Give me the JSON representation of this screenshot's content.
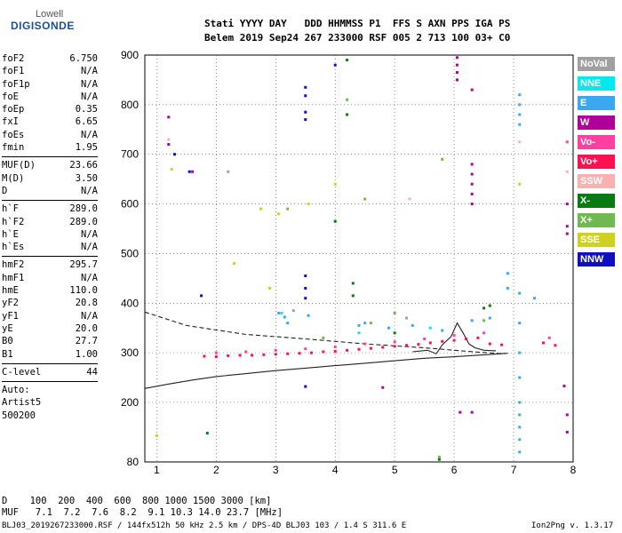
{
  "logo": {
    "line1": "Lowell",
    "line2": "DIGISONDE"
  },
  "header": {
    "line1": "Stati YYYY DAY   DDD HHMMSS P1  FFS S AXN PPS IGA PS",
    "line2": "Belem 2019 Sep24 267 233000 RSF 005 2 713 100 03+ C0"
  },
  "params": {
    "group1": [
      {
        "name": "foF2",
        "value": "6.750"
      },
      {
        "name": "foF1",
        "value": "N/A"
      },
      {
        "name": "foF1p",
        "value": "N/A"
      },
      {
        "name": "foE",
        "value": "N/A"
      },
      {
        "name": "foEp",
        "value": "0.35"
      },
      {
        "name": "fxI",
        "value": "6.65"
      },
      {
        "name": "foEs",
        "value": "N/A"
      },
      {
        "name": "fmin",
        "value": "1.95"
      }
    ],
    "group2": [
      {
        "name": "MUF(D)",
        "value": "23.66"
      },
      {
        "name": "M(D)",
        "value": "3.50"
      },
      {
        "name": "D",
        "value": "N/A"
      }
    ],
    "group3": [
      {
        "name": "h`F",
        "value": "289.0"
      },
      {
        "name": "h`F2",
        "value": "289.0"
      },
      {
        "name": "h`E",
        "value": "N/A"
      },
      {
        "name": "h`Es",
        "value": "N/A"
      }
    ],
    "group4": [
      {
        "name": "hmF2",
        "value": "295.7"
      },
      {
        "name": "hmF1",
        "value": "N/A"
      },
      {
        "name": "hmE",
        "value": "110.0"
      },
      {
        "name": "yF2",
        "value": "20.8"
      },
      {
        "name": "yF1",
        "value": "N/A"
      },
      {
        "name": "yE",
        "value": "20.0"
      },
      {
        "name": "B0",
        "value": "27.7"
      },
      {
        "name": "B1",
        "value": "1.00"
      }
    ],
    "group5": [
      {
        "name": "C-level",
        "value": "44"
      }
    ],
    "auto": [
      "Auto:",
      "Artist5",
      "500200"
    ]
  },
  "legend": [
    {
      "label": "NoVal",
      "color": "#a0a0a0"
    },
    {
      "label": "NNE",
      "color": "#00e8f0"
    },
    {
      "label": "E",
      "color": "#3aa8f0"
    },
    {
      "label": "W",
      "color": "#b0009a"
    },
    {
      "label": "Vo-",
      "color": "#ff40a0"
    },
    {
      "label": "Vo+",
      "color": "#ff1050"
    },
    {
      "label": "SSW",
      "color": "#f8b0b0"
    },
    {
      "label": "X-",
      "color": "#0a7a10"
    },
    {
      "label": "X+",
      "color": "#70b850"
    },
    {
      "label": "SSE",
      "color": "#d0d020"
    },
    {
      "label": "NNW",
      "color": "#1010c0"
    }
  ],
  "bottom": {
    "dline": "D    100  200  400  600  800 1000 1500 3000 [km]",
    "mufline": "MUF   7.1  7.2  7.6  8.2  9.1 10.3 14.0 23.7 [MHz]",
    "fileinfo": "BLJ03_2019267233000.RSF / 144fx512h 50 kHz 2.5 km / DPS-4D BLJ03 103 / 1.4 S 311.6 E",
    "version": "Ion2Png v. 1.3.17"
  },
  "chart_data": {
    "type": "scatter",
    "title": "",
    "xlabel": "",
    "ylabel": "",
    "xlim": [
      0.8,
      8.0
    ],
    "ylim": [
      80,
      900
    ],
    "xticks": [
      1,
      2,
      3,
      4,
      5,
      6,
      7,
      8
    ],
    "yticks": [
      80,
      200,
      300,
      400,
      500,
      600,
      700,
      800,
      900
    ],
    "grid": "dotted",
    "series": [
      {
        "name": "E",
        "color": "#3aa8f0",
        "points": [
          [
            3.05,
            380
          ],
          [
            3.15,
            372
          ],
          [
            3.2,
            360
          ],
          [
            3.55,
            375
          ],
          [
            4.4,
            355
          ],
          [
            4.5,
            360
          ],
          [
            4.9,
            350
          ],
          [
            5.3,
            355
          ],
          [
            5.8,
            345
          ],
          [
            6.3,
            365
          ],
          [
            6.6,
            370
          ],
          [
            7.1,
            820
          ],
          [
            7.1,
            800
          ],
          [
            7.1,
            780
          ],
          [
            7.1,
            760
          ],
          [
            7.1,
            420
          ],
          [
            7.1,
            360
          ],
          [
            7.1,
            300
          ],
          [
            7.1,
            250
          ],
          [
            7.1,
            200
          ],
          [
            7.1,
            175
          ],
          [
            7.1,
            150
          ],
          [
            7.1,
            125
          ],
          [
            7.1,
            100
          ],
          [
            6.9,
            430
          ],
          [
            6.9,
            460
          ],
          [
            7.35,
            410
          ]
        ]
      },
      {
        "name": "Vo+",
        "color": "#ff1050",
        "points": [
          [
            1.8,
            293
          ],
          [
            2.0,
            292
          ],
          [
            2.2,
            294
          ],
          [
            2.4,
            295
          ],
          [
            2.6,
            295
          ],
          [
            2.8,
            296
          ],
          [
            3.0,
            297
          ],
          [
            3.2,
            298
          ],
          [
            3.4,
            299
          ],
          [
            3.6,
            300
          ],
          [
            3.8,
            302
          ],
          [
            4.0,
            303
          ],
          [
            4.2,
            305
          ],
          [
            4.4,
            307
          ],
          [
            4.6,
            309
          ],
          [
            4.8,
            311
          ],
          [
            5.0,
            313
          ],
          [
            5.2,
            315
          ],
          [
            5.4,
            317
          ],
          [
            5.6,
            320
          ],
          [
            5.8,
            323
          ],
          [
            6.0,
            325
          ],
          [
            6.2,
            328
          ],
          [
            6.4,
            330
          ],
          [
            6.6,
            318
          ],
          [
            6.8,
            316
          ],
          [
            7.5,
            320
          ],
          [
            7.7,
            315
          ]
        ]
      },
      {
        "name": "Vo-",
        "color": "#ff40a0",
        "points": [
          [
            2.0,
            300
          ],
          [
            2.5,
            302
          ],
          [
            3.0,
            305
          ],
          [
            3.5,
            308
          ],
          [
            4.0,
            312
          ],
          [
            4.5,
            318
          ],
          [
            5.0,
            322
          ],
          [
            5.5,
            328
          ],
          [
            6.0,
            335
          ],
          [
            6.5,
            340
          ],
          [
            7.6,
            330
          ],
          [
            7.9,
            725
          ]
        ]
      },
      {
        "name": "W",
        "color": "#b0009a",
        "points": [
          [
            6.05,
            895
          ],
          [
            6.05,
            880
          ],
          [
            6.05,
            865
          ],
          [
            6.05,
            850
          ],
          [
            6.3,
            680
          ],
          [
            6.3,
            660
          ],
          [
            6.3,
            640
          ],
          [
            6.3,
            620
          ],
          [
            6.3,
            600
          ],
          [
            1.2,
            775
          ],
          [
            1.2,
            720
          ],
          [
            1.6,
            665
          ],
          [
            7.9,
            555
          ],
          [
            7.9,
            540
          ],
          [
            7.9,
            600
          ],
          [
            7.9,
            175
          ],
          [
            7.9,
            140
          ],
          [
            6.3,
            830
          ],
          [
            6.3,
            180
          ],
          [
            6.1,
            180
          ],
          [
            4.8,
            230
          ],
          [
            7.85,
            233
          ]
        ]
      },
      {
        "name": "NNW",
        "color": "#1010c0",
        "points": [
          [
            3.5,
            835
          ],
          [
            3.5,
            818
          ],
          [
            3.5,
            785
          ],
          [
            3.5,
            770
          ],
          [
            3.5,
            455
          ],
          [
            3.5,
            430
          ],
          [
            3.5,
            410
          ],
          [
            3.5,
            232
          ],
          [
            4.0,
            880
          ],
          [
            1.3,
            700
          ],
          [
            1.55,
            665
          ],
          [
            1.75,
            415
          ]
        ]
      },
      {
        "name": "X-",
        "color": "#0a7a10",
        "points": [
          [
            4.2,
            890
          ],
          [
            4.2,
            780
          ],
          [
            4.0,
            565
          ],
          [
            4.3,
            440
          ],
          [
            4.3,
            415
          ],
          [
            5.0,
            340
          ],
          [
            6.5,
            390
          ],
          [
            6.6,
            395
          ],
          [
            1.85,
            138
          ],
          [
            5.75,
            85
          ]
        ]
      },
      {
        "name": "X+",
        "color": "#70b850",
        "points": [
          [
            3.2,
            590
          ],
          [
            4.2,
            810
          ],
          [
            4.5,
            610
          ],
          [
            5.8,
            690
          ],
          [
            3.8,
            330
          ],
          [
            4.6,
            360
          ],
          [
            5.0,
            380
          ],
          [
            6.5,
            365
          ],
          [
            5.75,
            90
          ]
        ]
      },
      {
        "name": "SSE",
        "color": "#d0d020",
        "points": [
          [
            1.0,
            133
          ],
          [
            2.3,
            480
          ],
          [
            2.75,
            590
          ],
          [
            3.05,
            580
          ],
          [
            3.55,
            600
          ],
          [
            4.0,
            640
          ],
          [
            7.1,
            640
          ],
          [
            1.25,
            670
          ],
          [
            2.9,
            430
          ]
        ]
      },
      {
        "name": "SSW",
        "color": "#f8b0b0",
        "points": [
          [
            1.2,
            730
          ],
          [
            5.25,
            610
          ],
          [
            7.9,
            665
          ],
          [
            7.1,
            725
          ]
        ]
      },
      {
        "name": "NNE",
        "color": "#00e8f0",
        "points": [
          [
            3.1,
            380
          ],
          [
            4.4,
            340
          ],
          [
            5.6,
            350
          ]
        ]
      },
      {
        "name": "NoVal",
        "color": "#a0a0a0",
        "points": [
          [
            3.3,
            385
          ],
          [
            5.2,
            370
          ],
          [
            2.2,
            665
          ]
        ]
      }
    ],
    "curves": [
      {
        "name": "profile-dashed",
        "style": "dashed",
        "points": [
          [
            0.8,
            382
          ],
          [
            1.5,
            355
          ],
          [
            2.5,
            337
          ],
          [
            3.5,
            328
          ],
          [
            4.5,
            318
          ],
          [
            5.5,
            310
          ],
          [
            6.2,
            303
          ],
          [
            6.8,
            298
          ]
        ]
      },
      {
        "name": "virtual-height-solid",
        "style": "solid",
        "points": [
          [
            0.8,
            228
          ],
          [
            1.2,
            237
          ],
          [
            1.6,
            245
          ],
          [
            2.0,
            252
          ],
          [
            2.5,
            258
          ],
          [
            3.0,
            264
          ],
          [
            3.5,
            269
          ],
          [
            4.0,
            274
          ],
          [
            4.5,
            279
          ],
          [
            5.0,
            284
          ],
          [
            5.5,
            289
          ],
          [
            6.0,
            292
          ],
          [
            6.5,
            296
          ],
          [
            6.9,
            299
          ]
        ]
      },
      {
        "name": "trace-solid",
        "style": "solid",
        "points": [
          [
            5.3,
            302
          ],
          [
            5.55,
            305
          ],
          [
            5.7,
            298
          ],
          [
            5.8,
            316
          ],
          [
            5.95,
            333
          ],
          [
            6.05,
            360
          ],
          [
            6.15,
            340
          ],
          [
            6.25,
            318
          ],
          [
            6.35,
            310
          ],
          [
            6.5,
            305
          ],
          [
            6.7,
            304
          ]
        ]
      }
    ]
  }
}
